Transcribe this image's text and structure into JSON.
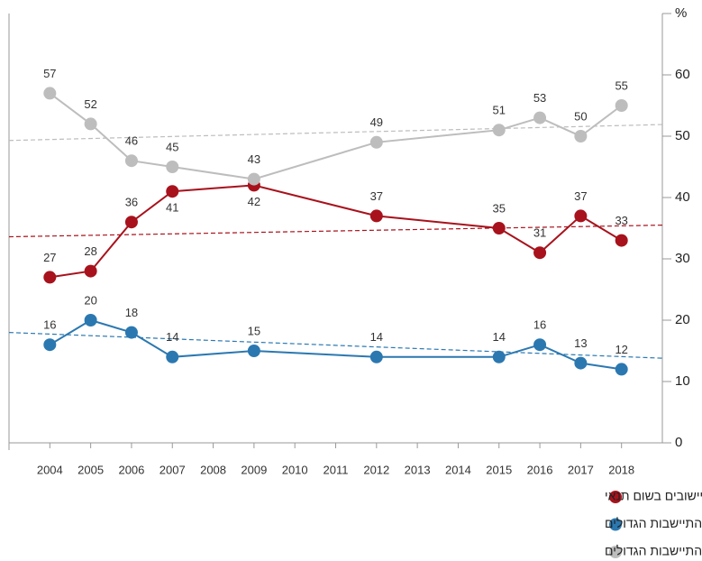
{
  "chart_data": {
    "type": "line",
    "x": [
      2004,
      2005,
      2006,
      2007,
      2009,
      2012,
      2015,
      2016,
      2017,
      2018
    ],
    "xlim": [
      2003,
      2019
    ],
    "xticks": [
      2004,
      2005,
      2006,
      2007,
      2008,
      2009,
      2010,
      2011,
      2012,
      2013,
      2014,
      2015,
      2016,
      2017,
      2018
    ],
    "ylim": [
      0,
      70
    ],
    "yticks": [
      0,
      10,
      20,
      30,
      40,
      50,
      60,
      {
        "value": 70,
        "label": "%"
      }
    ],
    "grid": false,
    "legend": "bottom",
    "series": [
      {
        "name": "אין לפנות יישובים בשום תנאי",
        "color": "#a8121c",
        "values": [
          27,
          28,
          36,
          41,
          42,
          37,
          35,
          31,
          37,
          33
        ],
        "trend": [
          33.6,
          35.5
        ]
      },
      {
        "name": "מוכן לפנות את כל היישובים כולל גושי ההתיישבות הגדולים",
        "color": "#2b78b1",
        "values": [
          16,
          20,
          18,
          14,
          15,
          14,
          14,
          16,
          13,
          12
        ],
        "trend": [
          18,
          13.8
        ]
      },
      {
        "name": "מוכן לפנות רק את היישובים שמחוץ לגושי ההתיישבות הגדולים",
        "color": "#bdbdbd",
        "values": [
          57,
          52,
          46,
          45,
          43,
          49,
          51,
          53,
          50,
          55
        ],
        "trend": [
          49.3,
          51.9
        ]
      }
    ]
  }
}
